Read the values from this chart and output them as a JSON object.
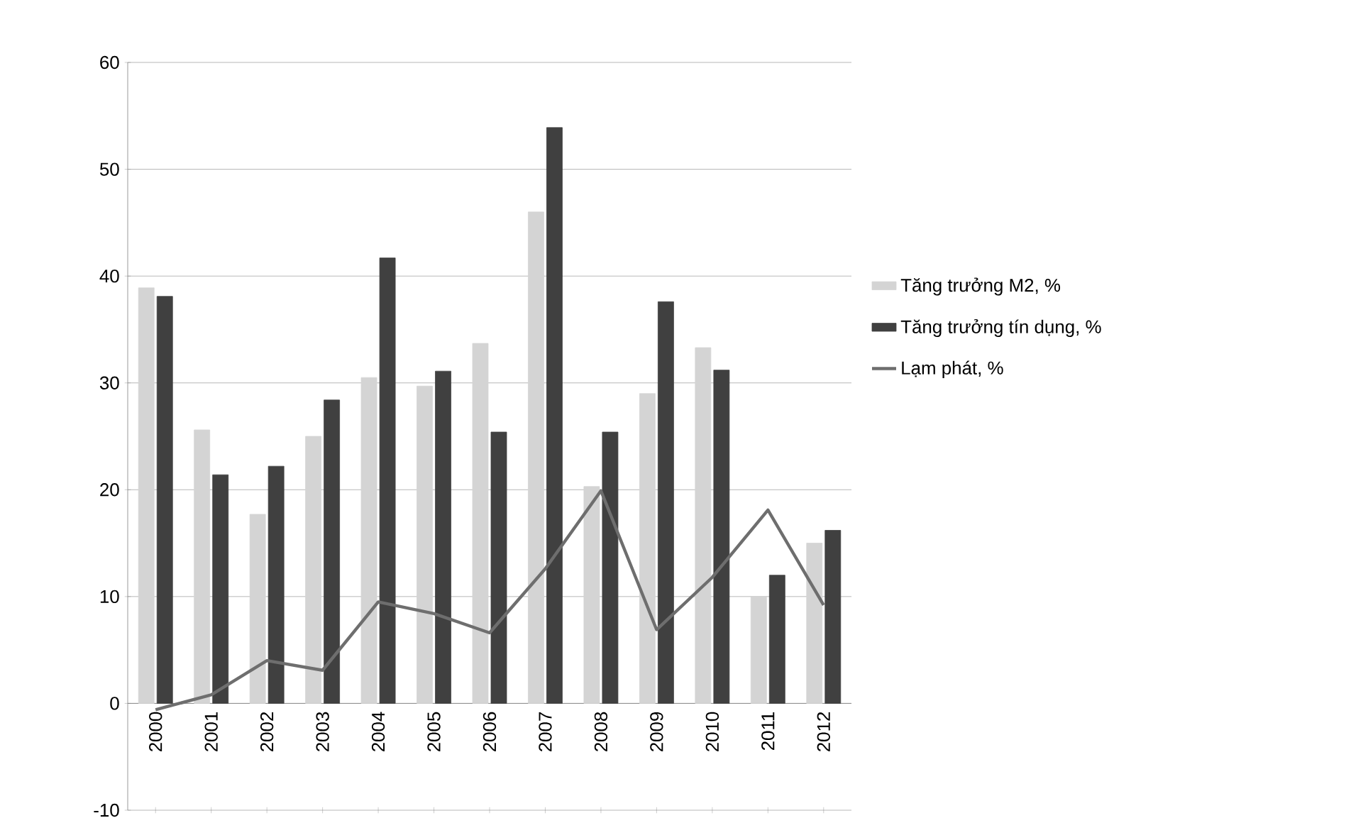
{
  "chart_data": {
    "type": "bar",
    "categories": [
      "2000",
      "2001",
      "2002",
      "2003",
      "2004",
      "2005",
      "2006",
      "2007",
      "2008",
      "2009",
      "2010",
      "2011",
      "2012"
    ],
    "series": [
      {
        "name": "Tăng trưởng M2, %",
        "color": "#d4d4d4",
        "values": [
          38.9,
          25.6,
          17.7,
          25,
          30.5,
          29.7,
          33.7,
          46,
          20.3,
          29,
          33.3,
          10,
          15
        ]
      },
      {
        "name": "Tăng trưởng tín dụng, %",
        "color": "#404040",
        "values": [
          38.1,
          21.4,
          22.2,
          28.4,
          41.7,
          31.1,
          25.4,
          53.9,
          25.4,
          37.6,
          31.2,
          12,
          16.2
        ]
      },
      {
        "name": "Lạm phát, %",
        "type": "line",
        "color": "#6e6e6e",
        "values": [
          -0.6,
          0.8,
          4,
          3.1,
          9.5,
          8.4,
          6.6,
          12.6,
          19.9,
          6.9,
          11.8,
          18.1,
          9.2
        ]
      }
    ],
    "ylim": [
      -10,
      60
    ],
    "yticks": [
      -10,
      0,
      10,
      20,
      30,
      40,
      50,
      60
    ],
    "grid": "y",
    "legend": "right",
    "marker": "none",
    "line_style": "solid"
  }
}
